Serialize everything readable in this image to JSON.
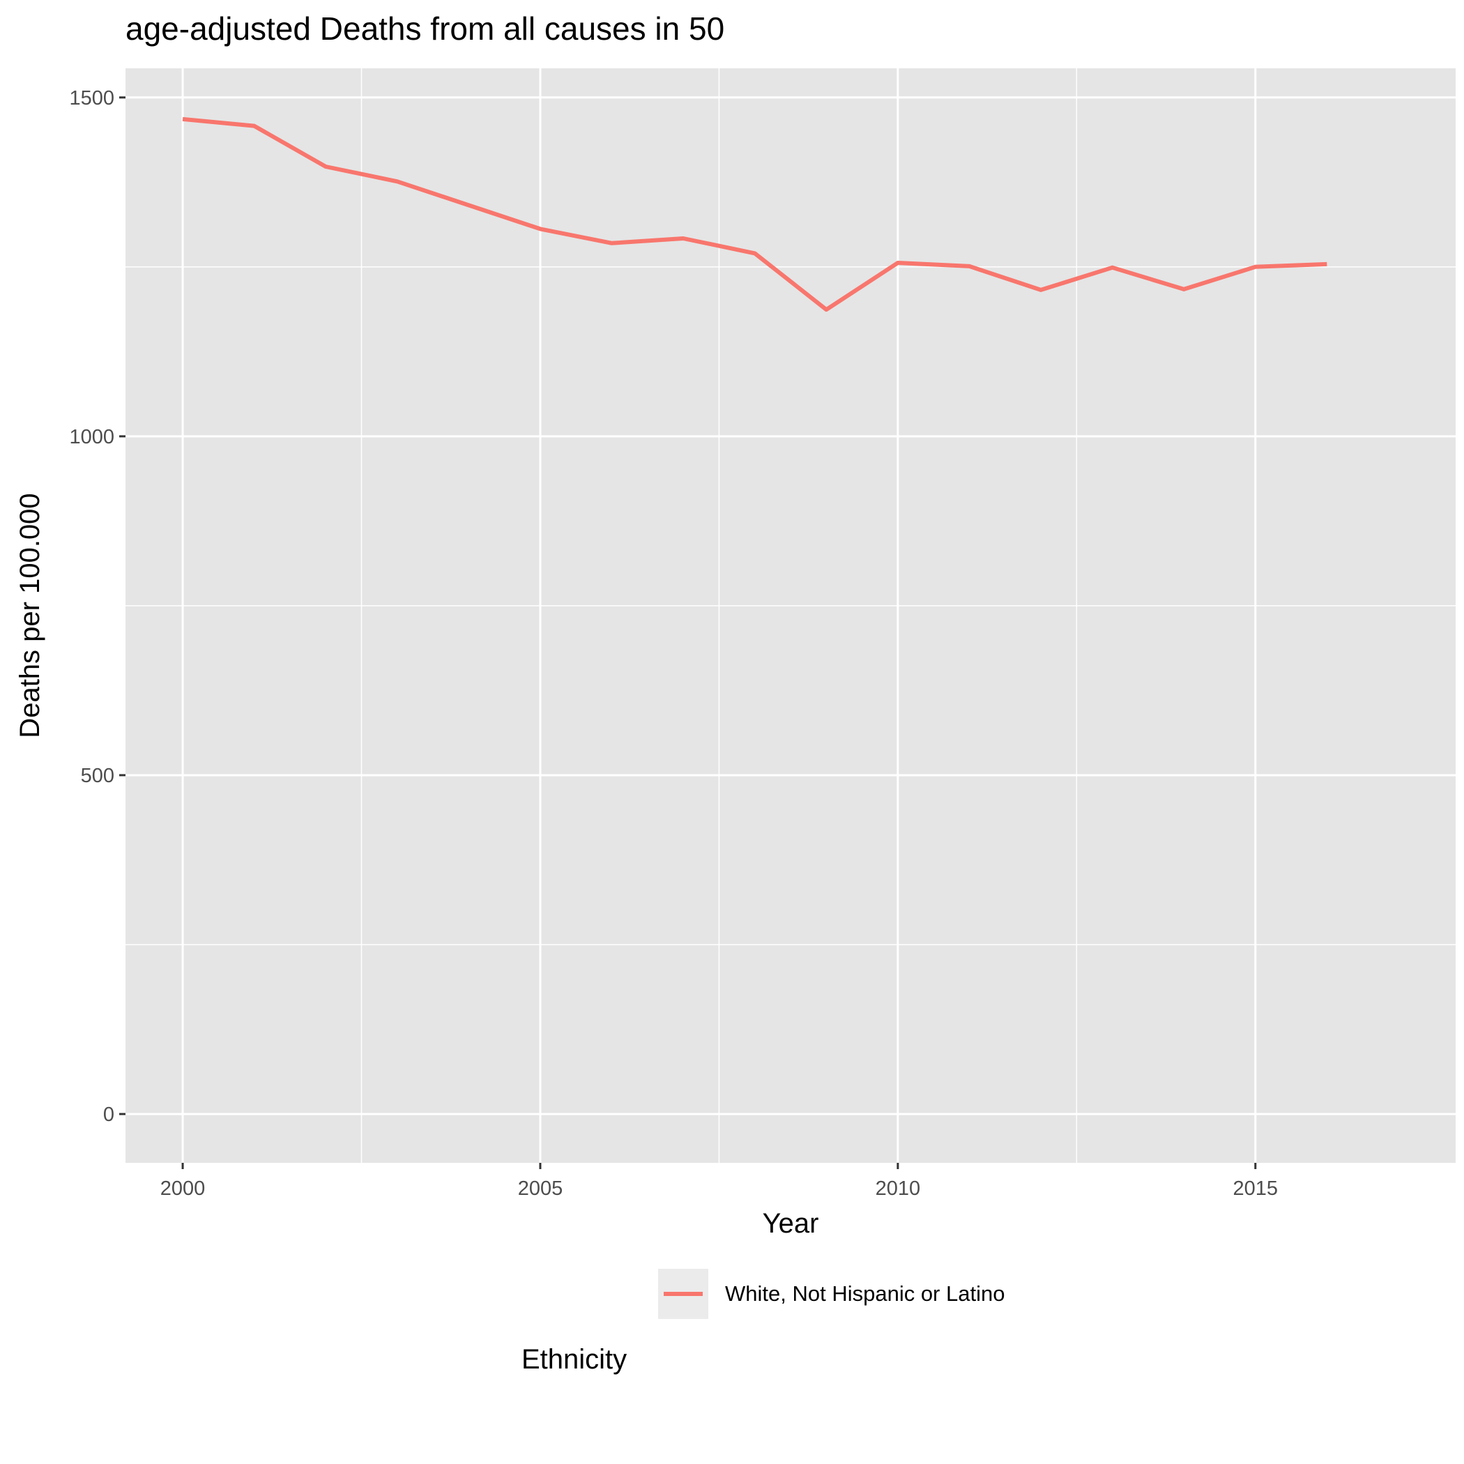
{
  "chart_data": {
    "type": "line",
    "title": "age-adjusted Deaths from all causes in 50",
    "xlabel": "Year",
    "ylabel": "Deaths per 100.000",
    "x": [
      2000,
      2001,
      2002,
      2003,
      2004,
      2005,
      2006,
      2007,
      2008,
      2009,
      2010,
      2011,
      2012,
      2013,
      2014,
      2015,
      2016
    ],
    "series": [
      {
        "name": "White, Not Hispanic or Latino",
        "color": "#f8766d",
        "values": [
          1468,
          1458,
          1398,
          1376,
          1341,
          1306,
          1285,
          1292,
          1270,
          1187,
          1256,
          1251,
          1216,
          1249,
          1217,
          1250,
          1254
        ]
      }
    ],
    "xlim": [
      1999.2,
      2017.8
    ],
    "ylim": [
      -72,
      1543
    ],
    "x_ticks": [
      2000,
      2005,
      2010,
      2015
    ],
    "x_tick_labels": [
      "2000",
      "2005",
      "2010",
      "2015"
    ],
    "y_ticks": [
      0,
      500,
      1000,
      1500
    ],
    "y_tick_labels": [
      "0",
      "500",
      "1000",
      "1500"
    ],
    "x_minor_ticks": [
      2002.5,
      2007.5,
      2012.5
    ],
    "y_minor_ticks": [
      250,
      750,
      1250
    ],
    "grid": true,
    "panel_color": "#e5e5e5",
    "legend": {
      "title": "Ethnicity",
      "position": "bottom"
    }
  }
}
